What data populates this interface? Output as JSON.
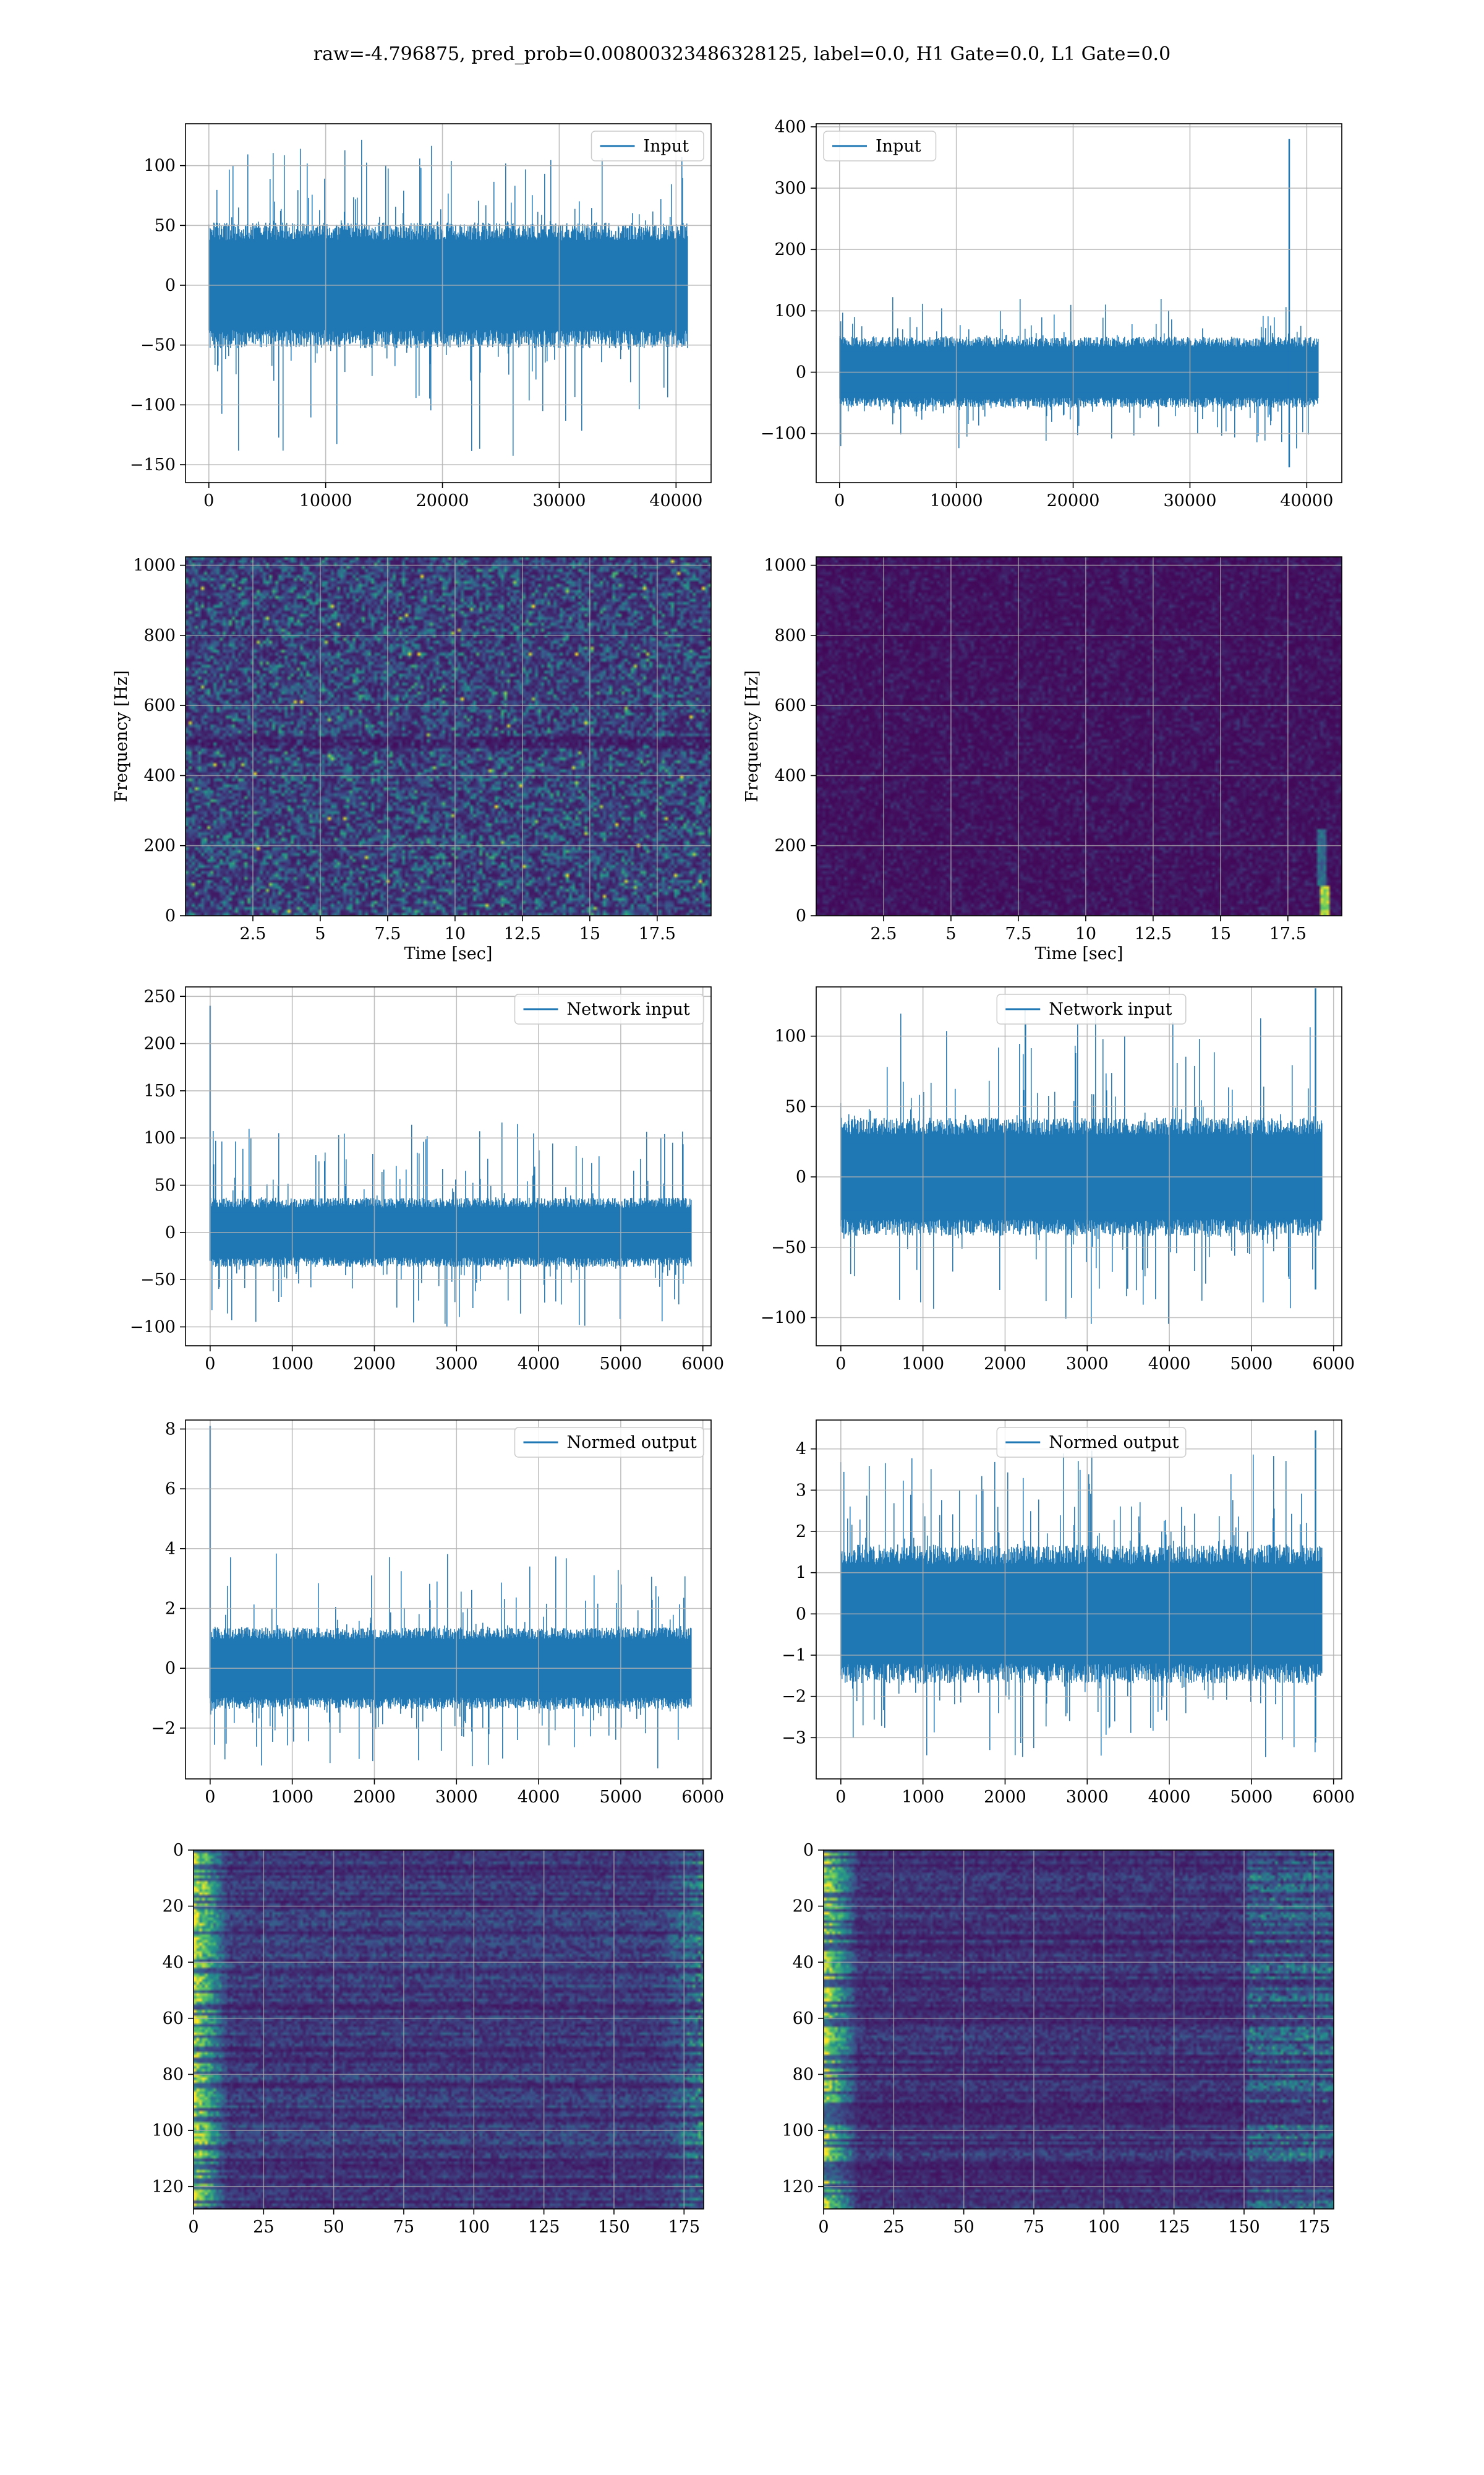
{
  "figure": {
    "title": "raw=-4.796875, pred_prob=0.00800323486328125, label=0.0, H1 Gate=0.0, L1 Gate=0.0"
  },
  "colors": {
    "line": "#1f77b4",
    "grid": "#b0b0b0",
    "viridis_dark": "#440154",
    "viridis_bright": "#fde725"
  },
  "chart_data": [
    {
      "id": "r1c1",
      "type": "line",
      "legend": "Input",
      "legend_loc": "upper right",
      "xlim": [
        -2000,
        43000
      ],
      "ylim": [
        -165,
        135
      ],
      "xticks": [
        0,
        10000,
        20000,
        30000,
        40000
      ],
      "yticks": [
        -150,
        -100,
        -50,
        0,
        50,
        100
      ],
      "n_points": 40960,
      "band": 50,
      "spike_max": 125,
      "spike_min": -145,
      "spike_events": [],
      "grid": true
    },
    {
      "id": "r1c2",
      "type": "line",
      "legend": "Input",
      "legend_loc": "upper left",
      "xlim": [
        -2000,
        43000
      ],
      "ylim": [
        -180,
        405
      ],
      "xticks": [
        0,
        10000,
        20000,
        30000,
        40000
      ],
      "yticks": [
        -100,
        0,
        100,
        200,
        300,
        400
      ],
      "n_points": 40960,
      "band": 55,
      "spike_max": 125,
      "spike_min": -125,
      "spike_events": [
        {
          "x": 38500,
          "max": 380,
          "min": -155
        }
      ],
      "grid": true
    },
    {
      "id": "r2c1",
      "type": "heatmap",
      "variant": "spectrogram",
      "xlabel": "Time [sec]",
      "ylabel": "Frequency [Hz]",
      "xlim": [
        0,
        19.5
      ],
      "ylim": [
        0,
        1024
      ],
      "xticks": [
        2.5,
        5.0,
        7.5,
        10.0,
        12.5,
        15.0,
        17.5
      ],
      "yticks": [
        0,
        200,
        400,
        600,
        800,
        1000
      ],
      "mean_intensity": 0.22,
      "feature": "noisy broadband with bright spots",
      "grid": true
    },
    {
      "id": "r2c2",
      "type": "heatmap",
      "variant": "spectrogram",
      "xlabel": "Time [sec]",
      "ylabel": "Frequency [Hz]",
      "xlim": [
        0,
        19.5
      ],
      "ylim": [
        0,
        1024
      ],
      "xticks": [
        2.5,
        5.0,
        7.5,
        10.0,
        12.5,
        15.0,
        17.5
      ],
      "yticks": [
        0,
        200,
        400,
        600,
        800,
        1000
      ],
      "mean_intensity": 0.06,
      "feature": "dark with bright blip near t=18.8 s, f<100 Hz",
      "grid": true
    },
    {
      "id": "r3c1",
      "type": "line",
      "legend": "Network input",
      "legend_loc": "upper right",
      "xlim": [
        -300,
        6100
      ],
      "ylim": [
        -120,
        260
      ],
      "xticks": [
        0,
        1000,
        2000,
        3000,
        4000,
        5000,
        6000
      ],
      "yticks": [
        -100,
        -50,
        0,
        50,
        100,
        150,
        200,
        250
      ],
      "n_points": 5860,
      "band": 35,
      "spike_max": 118,
      "spike_min": -100,
      "spike_events": [
        {
          "x": 0,
          "max": 240,
          "min": -30
        }
      ],
      "grid": true
    },
    {
      "id": "r3c2",
      "type": "line",
      "legend": "Network input",
      "legend_loc": "upper center",
      "xlim": [
        -300,
        6100
      ],
      "ylim": [
        -120,
        135
      ],
      "xticks": [
        0,
        1000,
        2000,
        3000,
        4000,
        5000,
        6000
      ],
      "yticks": [
        -100,
        -50,
        0,
        50,
        100
      ],
      "n_points": 5860,
      "band": 40,
      "spike_max": 122,
      "spike_min": -107,
      "spike_events": [
        {
          "x": 5780,
          "max": 134,
          "min": -80
        }
      ],
      "grid": true
    },
    {
      "id": "r4c1",
      "type": "line",
      "legend": "Normed output",
      "legend_loc": "upper right",
      "xlim": [
        -300,
        6100
      ],
      "ylim": [
        -3.7,
        8.3
      ],
      "xticks": [
        0,
        1000,
        2000,
        3000,
        4000,
        5000,
        6000
      ],
      "yticks": [
        -2,
        0,
        2,
        4,
        6,
        8
      ],
      "n_points": 5860,
      "band": 1.3,
      "spike_max": 3.9,
      "spike_min": -3.4,
      "spike_events": [
        {
          "x": 0,
          "max": 8.1,
          "min": -1
        }
      ],
      "grid": true
    },
    {
      "id": "r4c2",
      "type": "line",
      "legend": "Normed output",
      "legend_loc": "upper center",
      "xlim": [
        -300,
        6100
      ],
      "ylim": [
        -4.0,
        4.7
      ],
      "xticks": [
        0,
        1000,
        2000,
        3000,
        4000,
        5000,
        6000
      ],
      "yticks": [
        -3,
        -2,
        -1,
        0,
        1,
        2,
        3,
        4
      ],
      "n_points": 5860,
      "band": 1.6,
      "spike_max": 4.0,
      "spike_min": -3.5,
      "spike_events": [
        {
          "x": 5780,
          "max": 4.45,
          "min": -3
        }
      ],
      "grid": true
    },
    {
      "id": "r5c1",
      "type": "heatmap",
      "variant": "feature-map",
      "xlim": [
        0,
        182
      ],
      "ylim": [
        128,
        0
      ],
      "xticks": [
        0,
        25,
        50,
        75,
        100,
        125,
        150,
        175
      ],
      "yticks": [
        0,
        20,
        40,
        60,
        80,
        100,
        120
      ],
      "mean_intensity": 0.18,
      "feature": "bright at both edges",
      "grid": true
    },
    {
      "id": "r5c2",
      "type": "heatmap",
      "variant": "feature-map",
      "xlim": [
        0,
        182
      ],
      "ylim": [
        128,
        0
      ],
      "xticks": [
        0,
        25,
        50,
        75,
        100,
        125,
        150,
        175
      ],
      "yticks": [
        0,
        20,
        40,
        60,
        80,
        100,
        120
      ],
      "mean_intensity": 0.16,
      "feature": "bright at left edge and around x=150-175",
      "grid": true
    }
  ]
}
